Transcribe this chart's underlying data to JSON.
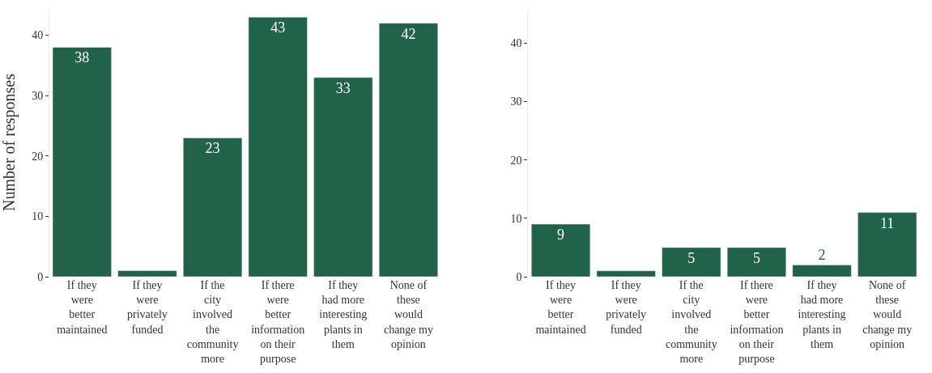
{
  "chart_data": [
    {
      "type": "bar",
      "ylabel": "Number of responses",
      "categories": [
        "If they were better maintained",
        "If they were privately funded",
        "If the city involved the community more",
        "If there were better information on their purpose",
        "If they had more interesting plants in them",
        "None of these would change my opinion"
      ],
      "values": [
        38,
        1,
        23,
        43,
        33,
        42
      ],
      "value_labels": [
        "38",
        null,
        "23",
        "43",
        "33",
        "42"
      ],
      "color": "#21634a",
      "ylim": [
        0,
        44.5
      ],
      "yticks": [
        0,
        10,
        20,
        30,
        40
      ],
      "legend": false
    },
    {
      "type": "bar",
      "categories": [
        "If they were better maintained",
        "If they were privately funded",
        "If the city involved the community more",
        "If there were better information on their purpose",
        "If they had more interesting plants in them",
        "None of these would change my opinion"
      ],
      "values": [
        9,
        1,
        5,
        5,
        2,
        11
      ],
      "value_labels": [
        "9",
        null,
        "5",
        "5",
        "2",
        "11"
      ],
      "color": "#21634a",
      "ylim": [
        0,
        46
      ],
      "yticks": [
        0,
        10,
        20,
        30,
        40
      ],
      "legend": false
    }
  ]
}
